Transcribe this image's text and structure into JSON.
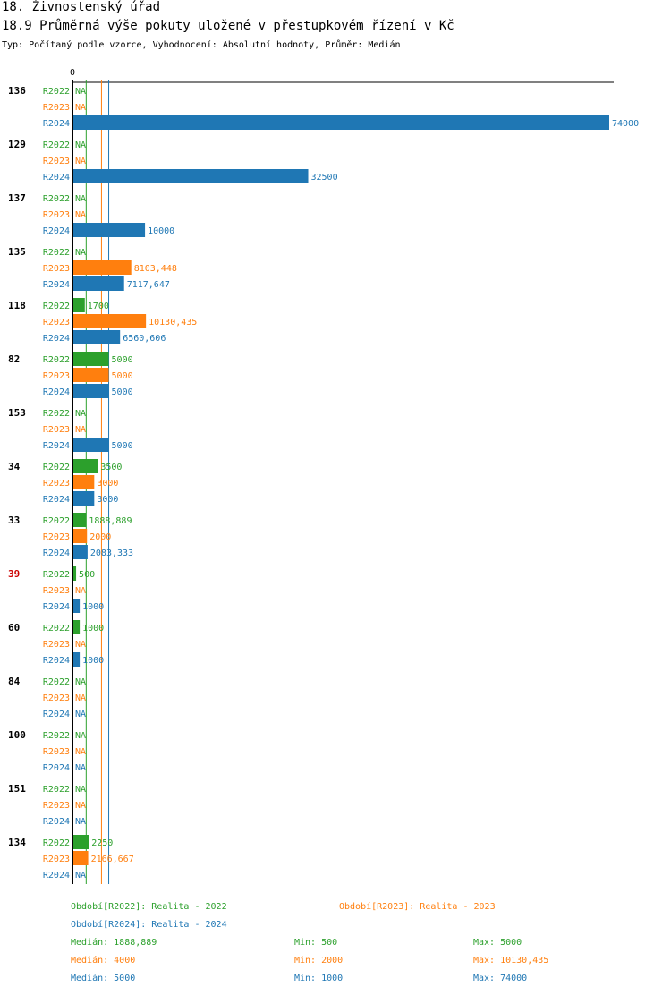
{
  "header": {
    "title": "18. Živnostenský úřad",
    "subtitle": "18.9 Průměrná výše pokuty uložené v přestupkovém řízení v Kč",
    "type_line": "Typ: Počítaný podle vzorce, Vyhodnocení: Absolutní hodnoty, Průměr: Medián"
  },
  "colors": {
    "R2022": "#2ca02c",
    "R2023": "#ff7f0e",
    "R2024": "#1f77b4",
    "highlight": "#cc0000",
    "axis": "#000000"
  },
  "chart_data": {
    "type": "bar",
    "orientation": "horizontal",
    "zero_label": "0",
    "xlim": [
      0,
      74000
    ],
    "series_names": [
      "R2022",
      "R2023",
      "R2024"
    ],
    "na_label": "NA",
    "groups": [
      {
        "id": "136",
        "values": [
          null,
          null,
          74000
        ],
        "labels": [
          "NA",
          "NA",
          "74000"
        ]
      },
      {
        "id": "129",
        "values": [
          null,
          null,
          32500
        ],
        "labels": [
          "NA",
          "NA",
          "32500"
        ]
      },
      {
        "id": "137",
        "values": [
          null,
          null,
          10000
        ],
        "labels": [
          "NA",
          "NA",
          "10000"
        ]
      },
      {
        "id": "135",
        "values": [
          null,
          8103.448,
          7117.647
        ],
        "labels": [
          "NA",
          "8103,448",
          "7117,647"
        ]
      },
      {
        "id": "118",
        "values": [
          1700,
          10130.435,
          6560.606
        ],
        "labels": [
          "1700",
          "10130,435",
          "6560,606"
        ]
      },
      {
        "id": "82",
        "values": [
          5000,
          5000,
          5000
        ],
        "labels": [
          "5000",
          "5000",
          "5000"
        ]
      },
      {
        "id": "153",
        "values": [
          null,
          null,
          5000
        ],
        "labels": [
          "NA",
          "NA",
          "5000"
        ]
      },
      {
        "id": "34",
        "values": [
          3500,
          3000,
          3000
        ],
        "labels": [
          "3500",
          "3000",
          "3000"
        ]
      },
      {
        "id": "33",
        "values": [
          1888.889,
          2000,
          2083.333
        ],
        "labels": [
          "1888,889",
          "2000",
          "2083,333"
        ]
      },
      {
        "id": "39",
        "highlight": true,
        "values": [
          500,
          null,
          1000
        ],
        "labels": [
          "500",
          "NA",
          "1000"
        ]
      },
      {
        "id": "60",
        "values": [
          1000,
          null,
          1000
        ],
        "labels": [
          "1000",
          "NA",
          "1000"
        ]
      },
      {
        "id": "84",
        "values": [
          null,
          null,
          null
        ],
        "labels": [
          "NA",
          "NA",
          "NA"
        ]
      },
      {
        "id": "100",
        "values": [
          null,
          null,
          null
        ],
        "labels": [
          "NA",
          "NA",
          "NA"
        ]
      },
      {
        "id": "151",
        "values": [
          null,
          null,
          null
        ],
        "labels": [
          "NA",
          "NA",
          "NA"
        ]
      },
      {
        "id": "134",
        "values": [
          2250,
          2166.667,
          null
        ],
        "labels": [
          "2250",
          "2166,667",
          "NA"
        ]
      }
    ],
    "median_lines": [
      {
        "series": "R2022",
        "value": 1888.889
      },
      {
        "series": "R2023",
        "value": 4000
      },
      {
        "series": "R2024",
        "value": 5000
      }
    ]
  },
  "legend": {
    "periods": [
      {
        "series": "R2022",
        "text": "Období[R2022]: Realita - 2022"
      },
      {
        "series": "R2023",
        "text": "Období[R2023]: Realita - 2023"
      },
      {
        "series": "R2024",
        "text": "Období[R2024]: Realita - 2024"
      }
    ],
    "stats": [
      {
        "series": "R2022",
        "median": "Medián: 1888,889",
        "min": "Min: 500",
        "max": "Max: 5000"
      },
      {
        "series": "R2023",
        "median": "Medián: 4000",
        "min": "Min: 2000",
        "max": "Max: 10130,435"
      },
      {
        "series": "R2024",
        "median": "Medián: 5000",
        "min": "Min: 1000",
        "max": "Max: 74000"
      }
    ]
  }
}
